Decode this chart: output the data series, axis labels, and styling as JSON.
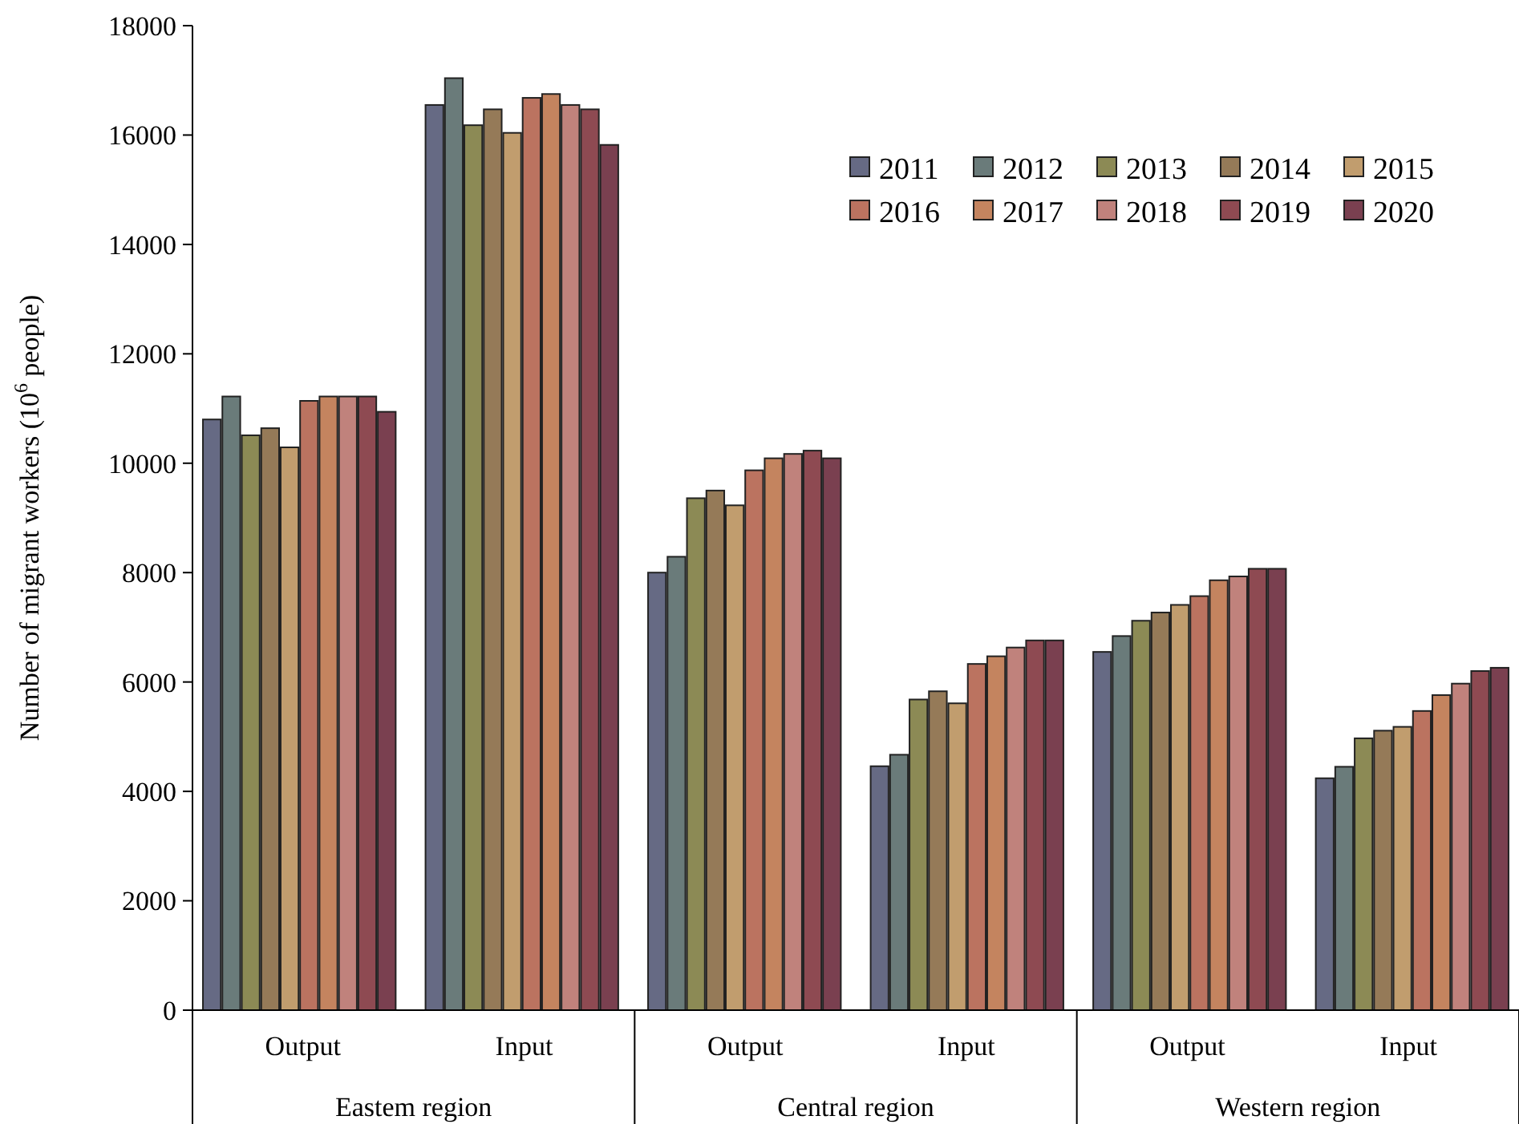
{
  "chart_data": {
    "type": "bar",
    "ylabel": "Number of migrant workers (10$^{6}$ people)",
    "categories": [
      "Output",
      "Input",
      "Output",
      "Input",
      "Output",
      "Input"
    ],
    "annotations": [
      "Eastem region",
      "Central region",
      "Western region"
    ],
    "ylim": [
      0,
      18000
    ],
    "yticks": [
      0,
      2000,
      4000,
      6000,
      8000,
      10000,
      12000,
      14000,
      16000,
      18000
    ],
    "legend": "top right",
    "grid": false,
    "series": [
      {
        "name": "2011",
        "color": "#666a84",
        "values": [
          10800,
          16550,
          8000,
          4460,
          6550,
          4240
        ]
      },
      {
        "name": "2012",
        "color": "#6a7b7a",
        "values": [
          11220,
          17040,
          8290,
          4670,
          6840,
          4450
        ]
      },
      {
        "name": "2013",
        "color": "#8c8a55",
        "values": [
          10510,
          16180,
          9360,
          5680,
          7120,
          4970
        ]
      },
      {
        "name": "2014",
        "color": "#957a58",
        "values": [
          10640,
          16470,
          9500,
          5830,
          7270,
          5110
        ]
      },
      {
        "name": "2015",
        "color": "#c19d6e",
        "values": [
          10290,
          16040,
          9230,
          5610,
          7410,
          5180
        ]
      },
      {
        "name": "2016",
        "color": "#bb7360",
        "values": [
          11140,
          16680,
          9870,
          6330,
          7570,
          5470
        ]
      },
      {
        "name": "2017",
        "color": "#c4845f",
        "values": [
          11220,
          16750,
          10090,
          6470,
          7860,
          5760
        ]
      },
      {
        "name": "2018",
        "color": "#c0827c",
        "values": [
          11220,
          16550,
          10170,
          6630,
          7930,
          5970
        ]
      },
      {
        "name": "2019",
        "color": "#8e4a52",
        "values": [
          11220,
          16470,
          10230,
          6760,
          8070,
          6200
        ]
      },
      {
        "name": "2020",
        "color": "#7a4050",
        "values": [
          10940,
          15820,
          10090,
          6760,
          8070,
          6260
        ]
      }
    ]
  }
}
